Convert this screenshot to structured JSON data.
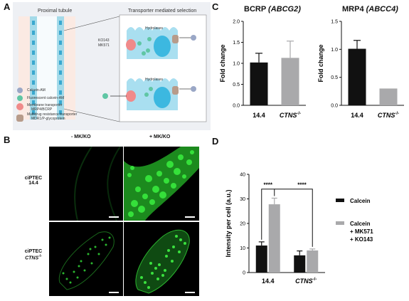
{
  "panels": {
    "A": "A",
    "B": "B",
    "C": "C",
    "D": "D"
  },
  "panelA": {
    "tubule_title": "Proximal tubule",
    "selection_title": "Transporter mediated selection",
    "hydrolases_1": "Hydrolases",
    "hydrolases_2": "Hydrolases",
    "inhibitor_1": "KO143",
    "inhibitor_2": "MK571",
    "legend": [
      {
        "label": "Calcein-AM"
      },
      {
        "label": "Fluorescent calcein-AM"
      },
      {
        "label": "Membrane transporter",
        "sub": "MRP4/BCRP"
      },
      {
        "label": "Multidrug resistance transporter",
        "sub": "MDR1/P-glycoprotein"
      }
    ]
  },
  "panelB": {
    "col_headers": [
      "- MK/KO",
      "+ MK/KO"
    ],
    "row_labels": [
      {
        "line1": "ciPTEC",
        "line2": "14.4"
      },
      {
        "line1": "ciPTEC",
        "line2": "CTNS",
        "sup": "-/-"
      }
    ]
  },
  "chart_data": [
    {
      "type": "bar",
      "title": "BCRP",
      "title_gene": "(ABCG2)",
      "ylabel": "Fold change",
      "ylim": [
        0,
        2.0
      ],
      "yticks": [
        "0.0",
        "0.5",
        "1.0",
        "1.5",
        "2.0"
      ],
      "categories": [
        {
          "main": "14.4"
        },
        {
          "main": "CTNS",
          "sup": "-/-"
        }
      ],
      "values": [
        1.02,
        1.13
      ],
      "errors": [
        0.22,
        0.4
      ],
      "colors": [
        "#111111",
        "#a9a9ab"
      ]
    },
    {
      "type": "bar",
      "title": "MRP4",
      "title_gene": "(ABCC4)",
      "ylabel": "Fold change",
      "ylim": [
        0,
        1.5
      ],
      "yticks": [
        "0.0",
        "0.5",
        "1.0",
        "1.5"
      ],
      "categories": [
        {
          "main": "14.4"
        },
        {
          "main": "CTNS",
          "sup": "-/-"
        }
      ],
      "values": [
        1.01,
        0.3
      ],
      "errors": [
        0.15,
        0.0
      ],
      "colors": [
        "#111111",
        "#a9a9ab"
      ]
    },
    {
      "type": "bar",
      "ylabel": "Intensity per cell (a.u.)",
      "ylim": [
        0,
        40
      ],
      "yticks": [
        "0",
        "10",
        "20",
        "30",
        "40"
      ],
      "categories": [
        {
          "main": "14.4"
        },
        {
          "main": "CTNS",
          "sup": "-/-"
        }
      ],
      "series": [
        {
          "name": "Calcein",
          "values": [
            11.0,
            7.0
          ],
          "errors": [
            1.5,
            1.8
          ],
          "color": "#111111"
        },
        {
          "name": "Calcein + MK571 + KO143",
          "values": [
            27.8,
            9.0
          ],
          "errors": [
            2.5,
            0.6
          ],
          "color": "#a9a9ab"
        }
      ],
      "legend_lines": [
        [
          "Calcein"
        ],
        [
          "Calcein",
          "+ MK571",
          "+ KO143"
        ]
      ],
      "annotations": [
        "****",
        "****"
      ]
    }
  ],
  "colors": {
    "calcein_am": "#9aa7c6",
    "fluor": "#5fc6a4",
    "transporter": "#f08a8a",
    "mdr": "#b79b8a",
    "cell": "#a9dff0",
    "nucleus": "#3cb8e0",
    "tubule_bg": "#fbeae3"
  }
}
